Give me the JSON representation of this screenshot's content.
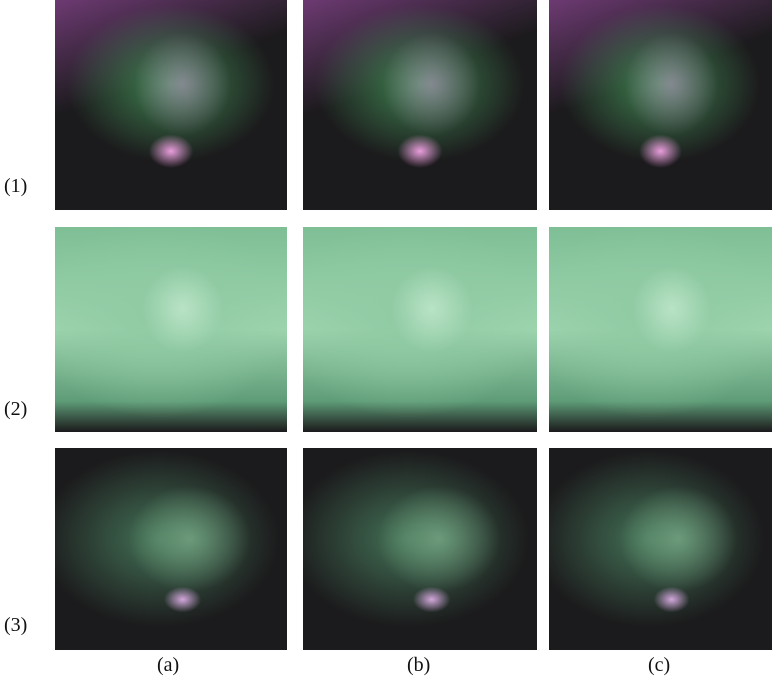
{
  "rows": [
    {
      "label": "(1)"
    },
    {
      "label": "(2)"
    },
    {
      "label": "(3)"
    }
  ],
  "columns": [
    {
      "label": "(a)"
    },
    {
      "label": "(b)"
    },
    {
      "label": "(c)"
    }
  ]
}
